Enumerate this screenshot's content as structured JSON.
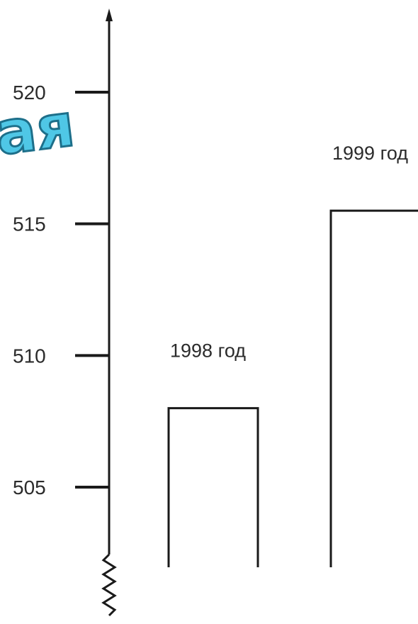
{
  "overlay_text": "ая",
  "chart_data": {
    "type": "bar",
    "categories": [
      "1998 год",
      "1999 год"
    ],
    "values": [
      508,
      515.5
    ],
    "ylim": [
      502,
      524
    ],
    "yticks": [
      505,
      510,
      515,
      520
    ],
    "axis_break": true,
    "grid": false,
    "title": "",
    "xlabel": "",
    "ylabel": ""
  }
}
